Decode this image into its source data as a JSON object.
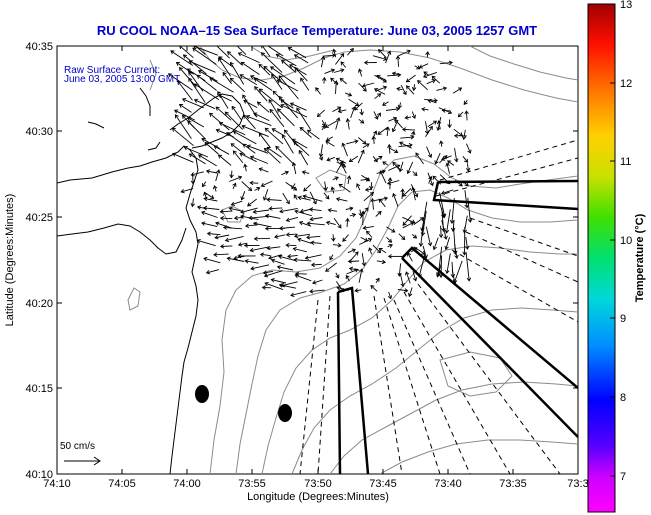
{
  "title": "RU COOL  NOAA–15  Sea Surface Temperature:  June 03, 2005 1257 GMT",
  "current_label": {
    "line1": "Raw Surface Current:",
    "line2": "June 03, 2005 13:00 GMT"
  },
  "scale_label": "50 cm/s",
  "axes": {
    "xlabel": "Longitude (Degrees:Minutes)",
    "ylabel": "Latitude (Degrees:Minutes)",
    "xticks": [
      "74:10",
      "74:05",
      "74:00",
      "73:55",
      "73:50",
      "73:45",
      "73:40",
      "73:35",
      "73:3"
    ],
    "yticks": [
      "40:35",
      "40:30",
      "40:25",
      "40:20",
      "40:15",
      "40:10"
    ]
  },
  "colorbar": {
    "label": "Temperature (°C)",
    "ticks": [
      "13",
      "12",
      "11",
      "10",
      "9",
      "8",
      "7"
    ]
  },
  "colors": {
    "title": "#0000cc",
    "label": "#0000cc",
    "frame": "#000000",
    "contour": "#8c8c8c"
  }
}
